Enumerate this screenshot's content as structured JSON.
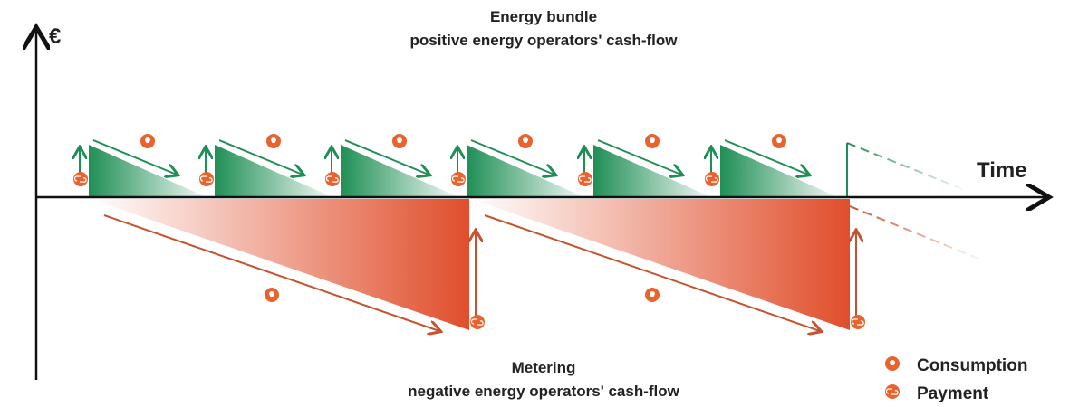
{
  "y_axis_label": "€",
  "x_axis_label": "Time",
  "top_caption": {
    "title": "Energy bundle",
    "subtitle": "positive energy operators' cash-flow"
  },
  "bottom_caption": {
    "title": "Metering",
    "subtitle": "negative energy operators' cash-flow"
  },
  "legend": [
    "Consumption",
    "Payment"
  ]
}
